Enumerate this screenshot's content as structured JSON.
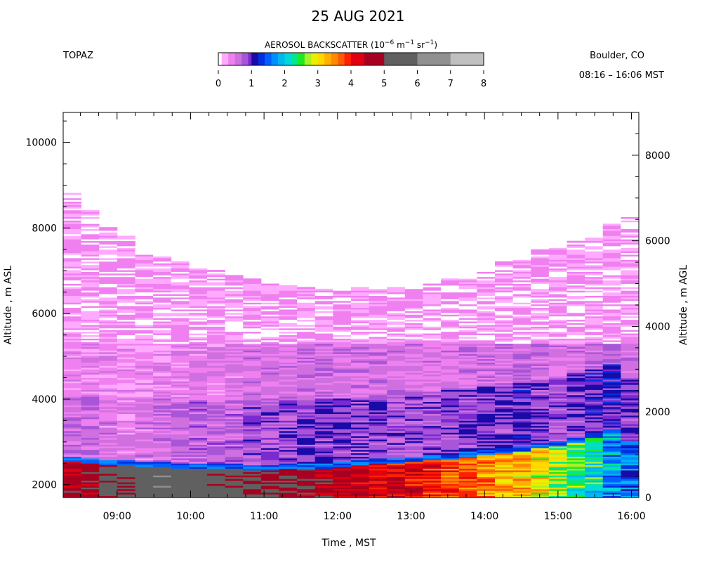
{
  "header": {
    "title": "25 AUG 2021",
    "instrument": "TOPAZ",
    "location": "Boulder, CO",
    "time_range": "08:16 – 16:06 MST"
  },
  "colorbar": {
    "label_main": "AEROSOL BACKSCATTER (10",
    "label_exp1": "−6",
    "label_mid": " m",
    "label_exp2": "−1",
    "label_mid2": " sr",
    "label_exp3": "−1",
    "label_end": ")",
    "ticks": [
      "0",
      "1",
      "2",
      "3",
      "4",
      "5",
      "6",
      "7",
      "8"
    ],
    "bins": [
      {
        "lo": 0.0,
        "hi": 0.1,
        "color": "#ffffff"
      },
      {
        "lo": 0.1,
        "hi": 0.3,
        "color": "#ffaaff"
      },
      {
        "lo": 0.3,
        "hi": 0.5,
        "color": "#f080f0"
      },
      {
        "lo": 0.5,
        "hi": 0.7,
        "color": "#d070e0"
      },
      {
        "lo": 0.7,
        "hi": 0.9,
        "color": "#a855d8"
      },
      {
        "lo": 0.9,
        "hi": 1.0,
        "color": "#7a2ad0"
      },
      {
        "lo": 1.0,
        "hi": 1.2,
        "color": "#1a0aa8"
      },
      {
        "lo": 1.2,
        "hi": 1.4,
        "color": "#0030e0"
      },
      {
        "lo": 1.4,
        "hi": 1.6,
        "color": "#0060ff"
      },
      {
        "lo": 1.6,
        "hi": 1.8,
        "color": "#0090ff"
      },
      {
        "lo": 1.8,
        "hi": 2.0,
        "color": "#00b8f0"
      },
      {
        "lo": 2.0,
        "hi": 2.2,
        "color": "#00d8d8"
      },
      {
        "lo": 2.2,
        "hi": 2.4,
        "color": "#00e890"
      },
      {
        "lo": 2.4,
        "hi": 2.6,
        "color": "#20e820"
      },
      {
        "lo": 2.6,
        "hi": 2.8,
        "color": "#a8f028"
      },
      {
        "lo": 2.8,
        "hi": 3.0,
        "color": "#e8f000"
      },
      {
        "lo": 3.0,
        "hi": 3.2,
        "color": "#ffd800"
      },
      {
        "lo": 3.2,
        "hi": 3.4,
        "color": "#ffb000"
      },
      {
        "lo": 3.4,
        "hi": 3.6,
        "color": "#ff8a00"
      },
      {
        "lo": 3.6,
        "hi": 3.8,
        "color": "#ff5a00"
      },
      {
        "lo": 3.8,
        "hi": 4.0,
        "color": "#ff2000"
      },
      {
        "lo": 4.0,
        "hi": 4.4,
        "color": "#e00010"
      },
      {
        "lo": 4.4,
        "hi": 5.0,
        "color": "#a80020"
      },
      {
        "lo": 5.0,
        "hi": 6.0,
        "color": "#606060"
      },
      {
        "lo": 6.0,
        "hi": 7.0,
        "color": "#909090"
      },
      {
        "lo": 7.0,
        "hi": 8.0,
        "color": "#c0c0c0"
      }
    ]
  },
  "chart_data": {
    "type": "heatmap",
    "xlabel": "Time , MST",
    "ylabel_left": "Altitude , m ASL",
    "ylabel_right": "Altitude , m AGL",
    "x_range": [
      "08:16",
      "16:06"
    ],
    "x_ticks": [
      "09:00",
      "10:00",
      "11:00",
      "12:00",
      "13:00",
      "14:00",
      "15:00",
      "16:00"
    ],
    "y_left_range": [
      1700,
      10700
    ],
    "y_left_ticks": [
      2000,
      4000,
      6000,
      8000,
      10000
    ],
    "y_right_offset": 1700,
    "y_right_ticks": [
      0,
      2000,
      4000,
      6000,
      8000
    ],
    "value_units": "1e-6 m-1 sr-1",
    "profile_times": [
      "08:16",
      "08:30",
      "08:45",
      "09:00",
      "09:15",
      "09:30",
      "09:45",
      "10:00",
      "10:15",
      "10:30",
      "10:45",
      "11:00",
      "11:15",
      "11:30",
      "11:45",
      "12:00",
      "12:15",
      "12:30",
      "12:45",
      "13:00",
      "13:15",
      "13:30",
      "13:45",
      "14:00",
      "14:15",
      "14:30",
      "14:45",
      "15:00",
      "15:15",
      "15:30",
      "15:45",
      "16:00"
    ],
    "signal_top_m_asl": [
      8800,
      8400,
      8000,
      7800,
      7500,
      7400,
      7200,
      7100,
      7000,
      6900,
      6800,
      6700,
      6650,
      6600,
      6580,
      6550,
      6600,
      6620,
      6600,
      6620,
      6700,
      6800,
      6900,
      7000,
      7200,
      7300,
      7500,
      7600,
      7700,
      7800,
      8100,
      8300
    ],
    "boundary_layer_top_m_asl": [
      2650,
      2600,
      2580,
      2560,
      2540,
      2520,
      2500,
      2480,
      2470,
      2470,
      2460,
      2460,
      2470,
      2480,
      2500,
      2520,
      2560,
      2600,
      2620,
      2650,
      2680,
      2700,
      2750,
      2800,
      2850,
      2900,
      2950,
      3000,
      3100,
      3200,
      3300,
      3000
    ],
    "boundary_layer_value": [
      4.6,
      4.8,
      5.3,
      5.4,
      5.5,
      5.6,
      5.5,
      5.5,
      5.4,
      5.3,
      5.2,
      5.1,
      4.9,
      4.7,
      4.6,
      4.5,
      4.4,
      4.3,
      4.2,
      4.1,
      4.0,
      3.8,
      3.7,
      3.5,
      3.3,
      3.2,
      3.0,
      2.7,
      2.4,
      2.2,
      1.8,
      1.5
    ],
    "mid_layer_value": [
      0.6,
      0.6,
      0.5,
      0.5,
      0.5,
      0.6,
      0.6,
      0.7,
      0.7,
      0.7,
      0.8,
      0.8,
      0.8,
      0.9,
      0.9,
      0.9,
      0.9,
      0.9,
      0.8,
      0.8,
      0.8,
      0.9,
      0.9,
      0.9,
      0.9,
      1.0,
      0.9,
      0.8,
      0.9,
      1.0,
      1.1,
      0.9
    ]
  }
}
